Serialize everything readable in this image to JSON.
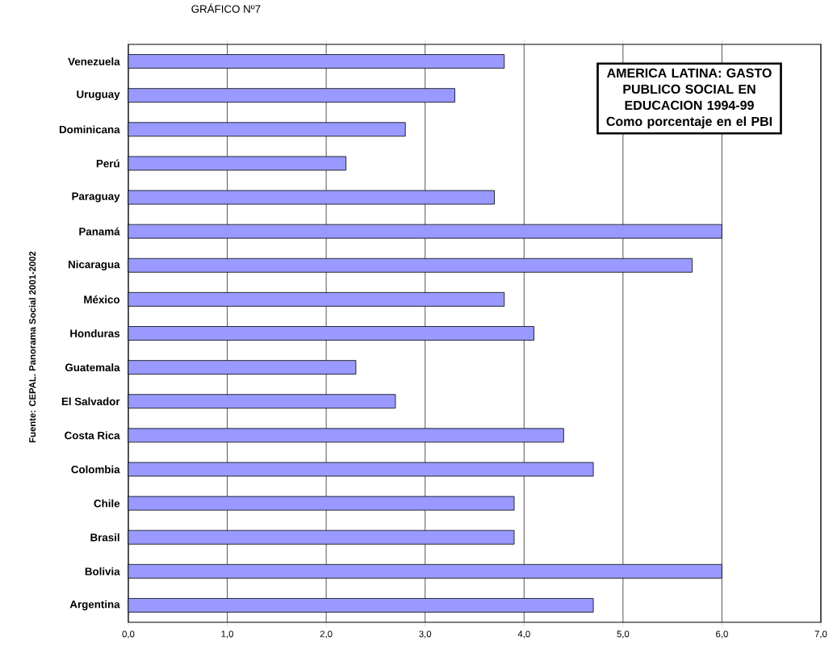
{
  "chart_data": {
    "type": "bar",
    "orientation": "horizontal",
    "title": "AMERICA LATINA: GASTO PUBLICO SOCIAL EN EDUCACION 1994-99",
    "subtitle": "Como porcentaje en el PBI",
    "categories": [
      "Venezuela",
      "Uruguay",
      "Dominicana",
      "Perú",
      "Paraguay",
      "Panamá",
      "Nicaragua",
      "México",
      "Honduras",
      "Guatemala",
      "El Salvador",
      "Costa Rica",
      "Colombia",
      "Chile",
      "Brasil",
      "Bolivia",
      "Argentina"
    ],
    "values": [
      3.8,
      3.3,
      2.8,
      2.2,
      3.7,
      6.0,
      5.7,
      3.8,
      4.1,
      2.3,
      2.7,
      4.4,
      4.7,
      3.9,
      3.9,
      6.0,
      4.7
    ],
    "color": "#9999ff",
    "xlim": [
      0,
      7
    ],
    "xticks": [
      {
        "value": 0,
        "label": "0,0"
      },
      {
        "value": 1,
        "label": "1,0"
      },
      {
        "value": 2,
        "label": "2,0"
      },
      {
        "value": 3,
        "label": "3,0"
      },
      {
        "value": 4,
        "label": "4,0"
      },
      {
        "value": 5,
        "label": "5,0"
      },
      {
        "value": 6,
        "label": "6,0"
      },
      {
        "value": 7,
        "label": "7,0"
      }
    ],
    "grid": "x",
    "annotations": [
      "GRÁFICO Nº7",
      "Fuente: CEPAL. Panorama Social 2001-2002"
    ]
  }
}
